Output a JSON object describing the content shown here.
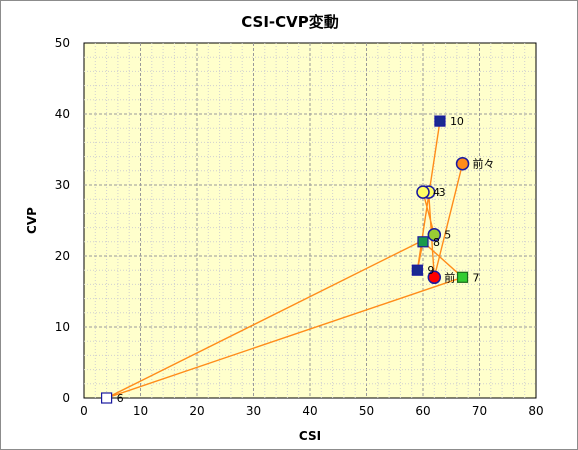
{
  "chart_data": {
    "type": "scatter",
    "title": "CSI-CVP変動",
    "xlabel": "CSI",
    "ylabel": "CVP",
    "xlim": [
      0,
      80
    ],
    "ylim": [
      0,
      50
    ],
    "x_ticks": [
      "0",
      "10",
      "20",
      "30",
      "40",
      "50",
      "60",
      "70",
      "80"
    ],
    "y_ticks": [
      "0",
      "10",
      "20",
      "30",
      "40",
      "50"
    ],
    "grid": true,
    "legend": "none",
    "connector_color": "#ff8c1a",
    "points": [
      {
        "label": "前々",
        "x": 67,
        "y": 33,
        "shape": "circle",
        "fill": "#ff8c1a",
        "stroke": "#1a1aa0"
      },
      {
        "label": "前",
        "x": 62,
        "y": 17,
        "shape": "circle",
        "fill": "#ff0000",
        "stroke": "#1a1aa0"
      },
      {
        "label": "3",
        "x": 61,
        "y": 29,
        "shape": "circle",
        "fill": "#ffff66",
        "stroke": "#1a1aa0"
      },
      {
        "label": "4",
        "x": 60,
        "y": 29,
        "shape": "circle",
        "fill": "#ffff66",
        "stroke": "#1a1aa0"
      },
      {
        "label": "5",
        "x": 62,
        "y": 23,
        "shape": "circle",
        "fill": "#99cc33",
        "stroke": "#1a1aa0"
      },
      {
        "label": "6",
        "x": 4,
        "y": 0,
        "shape": "square",
        "fill": "#ffffff",
        "stroke": "#1a1aa0"
      },
      {
        "label": "7",
        "x": 67,
        "y": 17,
        "shape": "square",
        "fill": "#33cc33",
        "stroke": "#1a6a1a"
      },
      {
        "label": "8",
        "x": 60,
        "y": 22,
        "shape": "square",
        "fill": "#1a9a4a",
        "stroke": "#1a1aa0"
      },
      {
        "label": "9",
        "x": 59,
        "y": 18,
        "shape": "square",
        "fill": "#1a2a90",
        "stroke": "#1a1aa0"
      },
      {
        "label": "10",
        "x": 63,
        "y": 39,
        "shape": "square",
        "fill": "#1a2a90",
        "stroke": "#1a1aa0"
      }
    ],
    "path_order": [
      "前々",
      "前",
      "3",
      "4",
      "5",
      "6",
      "7",
      "8",
      "9",
      "10"
    ]
  }
}
